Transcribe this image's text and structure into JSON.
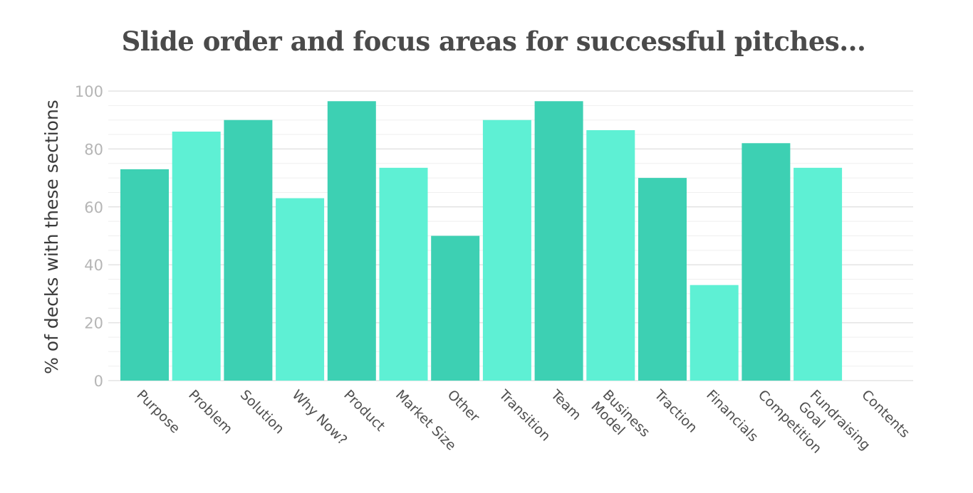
{
  "chart_data": {
    "type": "bar",
    "title": "Slide order and focus areas for successful pitches...",
    "ylabel": "% of decks with these sections",
    "xlabel": "",
    "ylim": [
      0,
      100
    ],
    "yticks": [
      0,
      20,
      40,
      60,
      80,
      100
    ],
    "categories": [
      [
        "Purpose"
      ],
      [
        "Problem"
      ],
      [
        "Solution"
      ],
      [
        "Why Now?"
      ],
      [
        "Product"
      ],
      [
        "Market Size"
      ],
      [
        "Other"
      ],
      [
        "Transition"
      ],
      [
        "Team"
      ],
      [
        "Business",
        "Model"
      ],
      [
        "Traction"
      ],
      [
        "Financials"
      ],
      [
        "Competition"
      ],
      [
        "Fundraising",
        "Goal"
      ],
      [
        "Contents"
      ]
    ],
    "values": [
      73,
      86,
      90,
      63,
      96.5,
      73.5,
      50,
      90,
      96.5,
      86.5,
      70,
      33,
      82,
      73.5,
      0
    ],
    "colors": {
      "dark": "#3dd0b3",
      "light": "#5ef0d4",
      "grid_major": "#e3e3e3",
      "grid_minor": "#efefef"
    },
    "bar_shades": [
      "dark",
      "light",
      "dark",
      "light",
      "dark",
      "light",
      "dark",
      "light",
      "dark",
      "light",
      "dark",
      "light",
      "dark",
      "light",
      "light"
    ]
  }
}
